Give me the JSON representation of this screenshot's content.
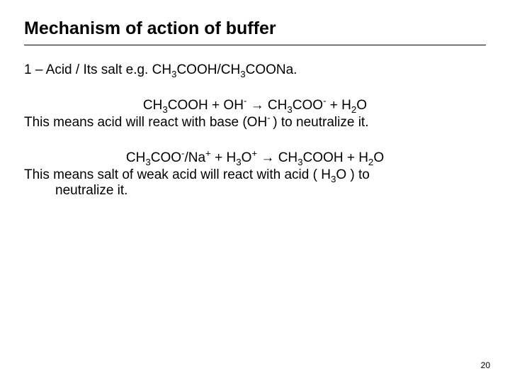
{
  "title": "Mechanism of action of buffer",
  "line1_prefix": "1 – Acid / Its salt e.g. CH",
  "line1_mid": "COOH/CH",
  "line1_suffix": "COONa.",
  "eq1": {
    "p1": "CH",
    "p2": "COOH + OH",
    "p3": " → CH",
    "p4": "COO",
    "p5": " + H",
    "p6": "O"
  },
  "desc1_a": "This means acid will react with base (OH",
  "desc1_b": ") to neutralize it.",
  "eq2": {
    "p1": "CH",
    "p2": "COO",
    "p3": "/Na",
    "p4": " + H",
    "p5": "O",
    "p6": " → CH",
    "p7": "COOH + H",
    "p8": "O"
  },
  "desc2_a": "This means salt of weak acid will react with acid ( H",
  "desc2_b": "O ) to",
  "desc2_c": "neutralize it.",
  "pagenum": "20",
  "colors": {
    "text": "#000000",
    "background": "#ffffff",
    "rule": "#000000"
  },
  "fontsizes": {
    "title": 25,
    "body": 19,
    "pagenum": 12
  }
}
